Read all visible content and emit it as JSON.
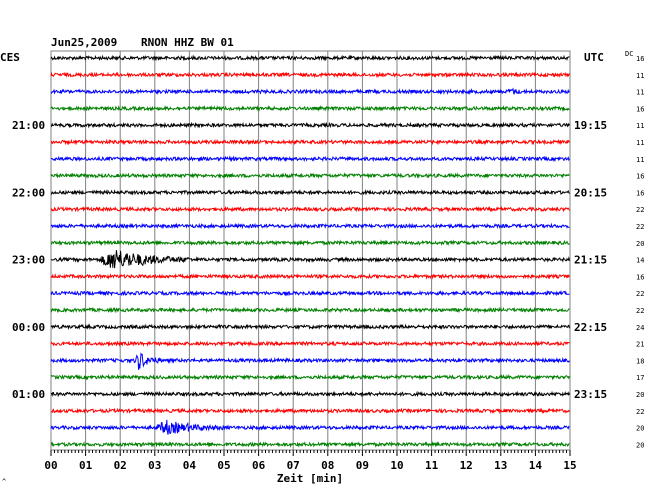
{
  "header": {
    "date": "Jun25,2009",
    "station": "RNON HHZ BW 01",
    "left_zone": "CES",
    "right_zone": "UTC",
    "dc_label": "DC"
  },
  "chart_data": {
    "type": "line",
    "title": "Jun25,2009   RNON HHZ BW 01",
    "xlabel": "Zeit [min]",
    "x_ticks": [
      "00",
      "01",
      "02",
      "03",
      "04",
      "05",
      "06",
      "07",
      "08",
      "09",
      "10",
      "11",
      "12",
      "13",
      "14",
      "15"
    ],
    "xlim": [
      0,
      15
    ],
    "grid": true,
    "trace_colors": [
      "#000000",
      "#ff0000",
      "#0000ff",
      "#008000"
    ],
    "left_time_labels": [
      {
        "row": 4,
        "label": "21:00"
      },
      {
        "row": 8,
        "label": "22:00"
      },
      {
        "row": 12,
        "label": "23:00"
      },
      {
        "row": 16,
        "label": "00:00"
      },
      {
        "row": 20,
        "label": "01:00"
      }
    ],
    "right_time_labels": [
      {
        "row": 4,
        "label": "19:15"
      },
      {
        "row": 8,
        "label": "20:15"
      },
      {
        "row": 12,
        "label": "21:15"
      },
      {
        "row": 16,
        "label": "22:15"
      },
      {
        "row": 20,
        "label": "23:15"
      }
    ],
    "dc_offsets": [
      16,
      11,
      11,
      16,
      11,
      11,
      11,
      16,
      16,
      22,
      22,
      20,
      14,
      16,
      22,
      22,
      24,
      21,
      18,
      17,
      20,
      22,
      20,
      20
    ],
    "events": [
      {
        "row": 12,
        "start_min": 1.4,
        "end_min": 4.0,
        "amplitude": 1.0
      },
      {
        "row": 18,
        "start_min": 2.4,
        "end_min": 3.2,
        "amplitude": 0.8
      },
      {
        "row": 22,
        "start_min": 3.0,
        "end_min": 5.0,
        "amplitude": 0.6
      },
      {
        "row": 2,
        "start_min": 13.2,
        "end_min": 13.7,
        "amplitude": 0.25
      }
    ]
  }
}
